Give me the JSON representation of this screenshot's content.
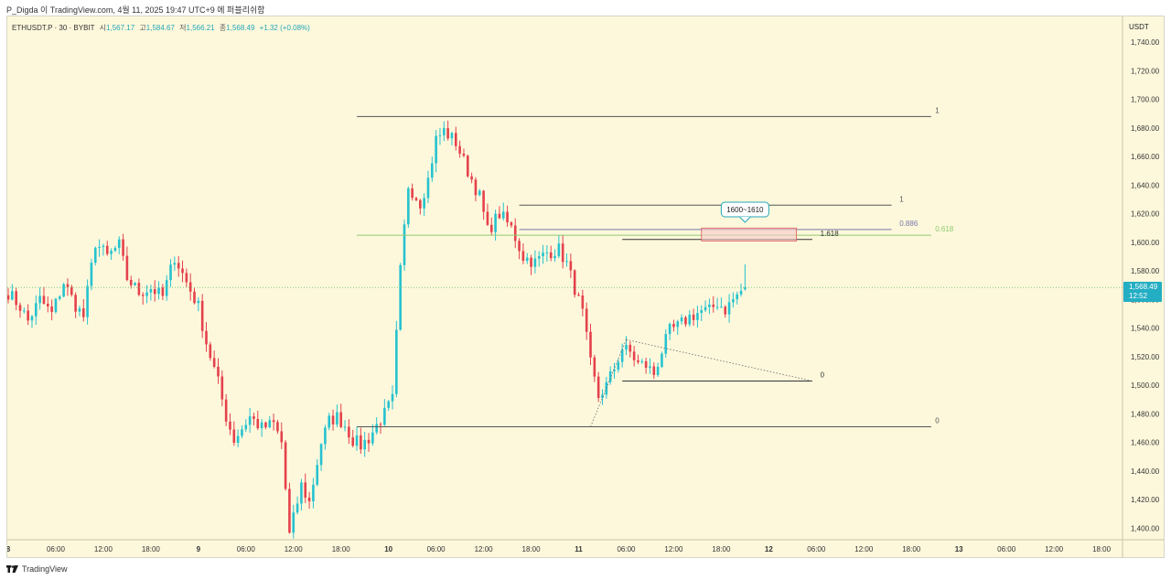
{
  "caption": "P_Digda 이 TradingView.com, 4월 11, 2025 19:47 UTC+9 에 퍼블리쉬함",
  "legend": {
    "symbol": "ETHUSDT.P · 30 · BYBIT",
    "open_label": "시",
    "open": "1,567.17",
    "high_label": "고",
    "high": "1,584.67",
    "low_label": "저",
    "low": "1,566.21",
    "close_label": "종",
    "close": "1,568.49",
    "change": "+1.32 (+0.08%)"
  },
  "currency": "USDT",
  "price_tag": {
    "price": "1,568.49",
    "countdown": "12:52"
  },
  "footer": {
    "brand": "TradingView"
  },
  "colors": {
    "background": "#fdf8dc",
    "up": "#26c2cf",
    "down": "#e5414c",
    "fib_green": "#8fca6e",
    "level_gray": "#8a8a8a",
    "zone_fill": "#f7c9c9",
    "zone_border": "#d55",
    "price_tag": "#23aec3"
  },
  "chart_data": {
    "type": "candlestick",
    "symbol": "ETHUSDT.P",
    "interval": "30",
    "exchange": "BYBIT",
    "currency": "USDT",
    "ylim": [
      1392,
      1758
    ],
    "y_ticks": [
      1400,
      1420,
      1440,
      1460,
      1480,
      1500,
      1520,
      1540,
      1560,
      1580,
      1600,
      1620,
      1640,
      1660,
      1680,
      1700,
      1720,
      1740
    ],
    "x_range_bars": [
      0,
      233
    ],
    "x_ticks": [
      {
        "label": "8",
        "bar": 0,
        "bold": true
      },
      {
        "label": "06:00",
        "bar": 12
      },
      {
        "label": "12:00",
        "bar": 24
      },
      {
        "label": "18:00",
        "bar": 36
      },
      {
        "label": "9",
        "bar": 48,
        "bold": true
      },
      {
        "label": "06:00",
        "bar": 60
      },
      {
        "label": "12:00",
        "bar": 72
      },
      {
        "label": "18:00",
        "bar": 84
      },
      {
        "label": "10",
        "bar": 96,
        "bold": true
      },
      {
        "label": "06:00",
        "bar": 108
      },
      {
        "label": "12:00",
        "bar": 120
      },
      {
        "label": "18:00",
        "bar": 132
      },
      {
        "label": "11",
        "bar": 144,
        "bold": true
      },
      {
        "label": "06:00",
        "bar": 156
      },
      {
        "label": "12:00",
        "bar": 168
      },
      {
        "label": "18:00",
        "bar": 180
      },
      {
        "label": "12",
        "bar": 192,
        "bold": true
      },
      {
        "label": "06:00",
        "bar": 204
      },
      {
        "label": "12:00",
        "bar": 216
      },
      {
        "label": "18:00",
        "bar": 228
      },
      {
        "label": "13",
        "bar": 240,
        "bold": true
      },
      {
        "label": "06:00",
        "bar": 252
      },
      {
        "label": "12:00",
        "bar": 264
      },
      {
        "label": "18:00",
        "bar": 276
      }
    ],
    "close_path": [
      [
        0,
        1565
      ],
      [
        3,
        1555
      ],
      [
        5,
        1545
      ],
      [
        8,
        1560
      ],
      [
        11,
        1550
      ],
      [
        14,
        1572
      ],
      [
        17,
        1556
      ],
      [
        19,
        1548
      ],
      [
        22,
        1600
      ],
      [
        25,
        1590
      ],
      [
        28,
        1598
      ],
      [
        30,
        1575
      ],
      [
        33,
        1565
      ],
      [
        36,
        1568
      ],
      [
        39,
        1562
      ],
      [
        42,
        1590
      ],
      [
        45,
        1572
      ],
      [
        48,
        1555
      ],
      [
        50,
        1530
      ],
      [
        53,
        1502
      ],
      [
        55,
        1478
      ],
      [
        57,
        1462
      ],
      [
        59,
        1470
      ],
      [
        61,
        1478
      ],
      [
        64,
        1470
      ],
      [
        67,
        1473
      ],
      [
        69,
        1460
      ],
      [
        71,
        1395
      ],
      [
        74,
        1430
      ],
      [
        76,
        1418
      ],
      [
        79,
        1460
      ],
      [
        81,
        1475
      ],
      [
        83,
        1478
      ],
      [
        85,
        1472
      ],
      [
        87,
        1462
      ],
      [
        89,
        1458
      ],
      [
        91,
        1463
      ],
      [
        93,
        1472
      ],
      [
        95,
        1480
      ],
      [
        97,
        1490
      ],
      [
        99,
        1580
      ],
      [
        101,
        1640
      ],
      [
        104,
        1628
      ],
      [
        106,
        1644
      ],
      [
        108,
        1672
      ],
      [
        110,
        1678
      ],
      [
        113,
        1670
      ],
      [
        116,
        1650
      ],
      [
        119,
        1632
      ],
      [
        121,
        1608
      ],
      [
        124,
        1620
      ],
      [
        127,
        1610
      ],
      [
        130,
        1590
      ],
      [
        133,
        1586
      ],
      [
        136,
        1593
      ],
      [
        139,
        1595
      ],
      [
        141,
        1585
      ],
      [
        143,
        1568
      ],
      [
        145,
        1550
      ],
      [
        147,
        1515
      ],
      [
        149,
        1492
      ],
      [
        151,
        1500
      ],
      [
        153,
        1512
      ],
      [
        155,
        1526
      ],
      [
        157,
        1523
      ],
      [
        159,
        1515
      ],
      [
        161,
        1514
      ],
      [
        163,
        1508
      ],
      [
        165,
        1524
      ],
      [
        167,
        1538
      ],
      [
        169,
        1541
      ],
      [
        172,
        1548
      ],
      [
        175,
        1552
      ],
      [
        177,
        1552
      ],
      [
        179,
        1558
      ],
      [
        181,
        1553
      ],
      [
        183,
        1560
      ],
      [
        185,
        1566
      ],
      [
        186,
        1568.5
      ]
    ],
    "levels": [
      {
        "label": "1",
        "price": 1688,
        "from_bar": 88,
        "to_bar": 233,
        "label_bar": 234,
        "color": "#555"
      },
      {
        "label": "1",
        "price": 1626,
        "from_bar": 129,
        "to_bar": 223,
        "label_bar": 225,
        "color": "#555"
      },
      {
        "label": "0.886",
        "price": 1609,
        "from_bar": 129,
        "to_bar": 223,
        "label_bar": 225,
        "color": "#7777aa"
      },
      {
        "label": "0.618",
        "price": 1605,
        "from_bar": 88,
        "to_bar": 233,
        "label_bar": 234,
        "color": "#8fca6e"
      },
      {
        "label": "1.618",
        "price": 1602,
        "from_bar": 155,
        "to_bar": 203,
        "label_bar": 205,
        "color": "#333"
      },
      {
        "label": "0",
        "price": 1503,
        "from_bar": 155,
        "to_bar": 203,
        "label_bar": 205,
        "color": "#333"
      },
      {
        "label": "0",
        "price": 1471,
        "from_bar": 88,
        "to_bar": 233,
        "label_bar": 234,
        "color": "#555"
      }
    ],
    "zone": {
      "from_bar": 175,
      "to_bar": 199,
      "low": 1601,
      "high": 1610
    },
    "callout": {
      "text": "1600~1610",
      "bar": 186,
      "price": 1623
    },
    "trendlines": [
      {
        "from": [
          147,
          1471
        ],
        "to": [
          156,
          1532
        ],
        "style": "dotted"
      },
      {
        "from": [
          156,
          1532
        ],
        "to": [
          203,
          1503
        ],
        "style": "dotted"
      }
    ],
    "last_price": 1568.49,
    "ohlc": {
      "open": 1567.17,
      "high": 1584.67,
      "low": 1566.21,
      "close": 1568.49
    },
    "change": 1.32,
    "change_pct": 0.08
  }
}
